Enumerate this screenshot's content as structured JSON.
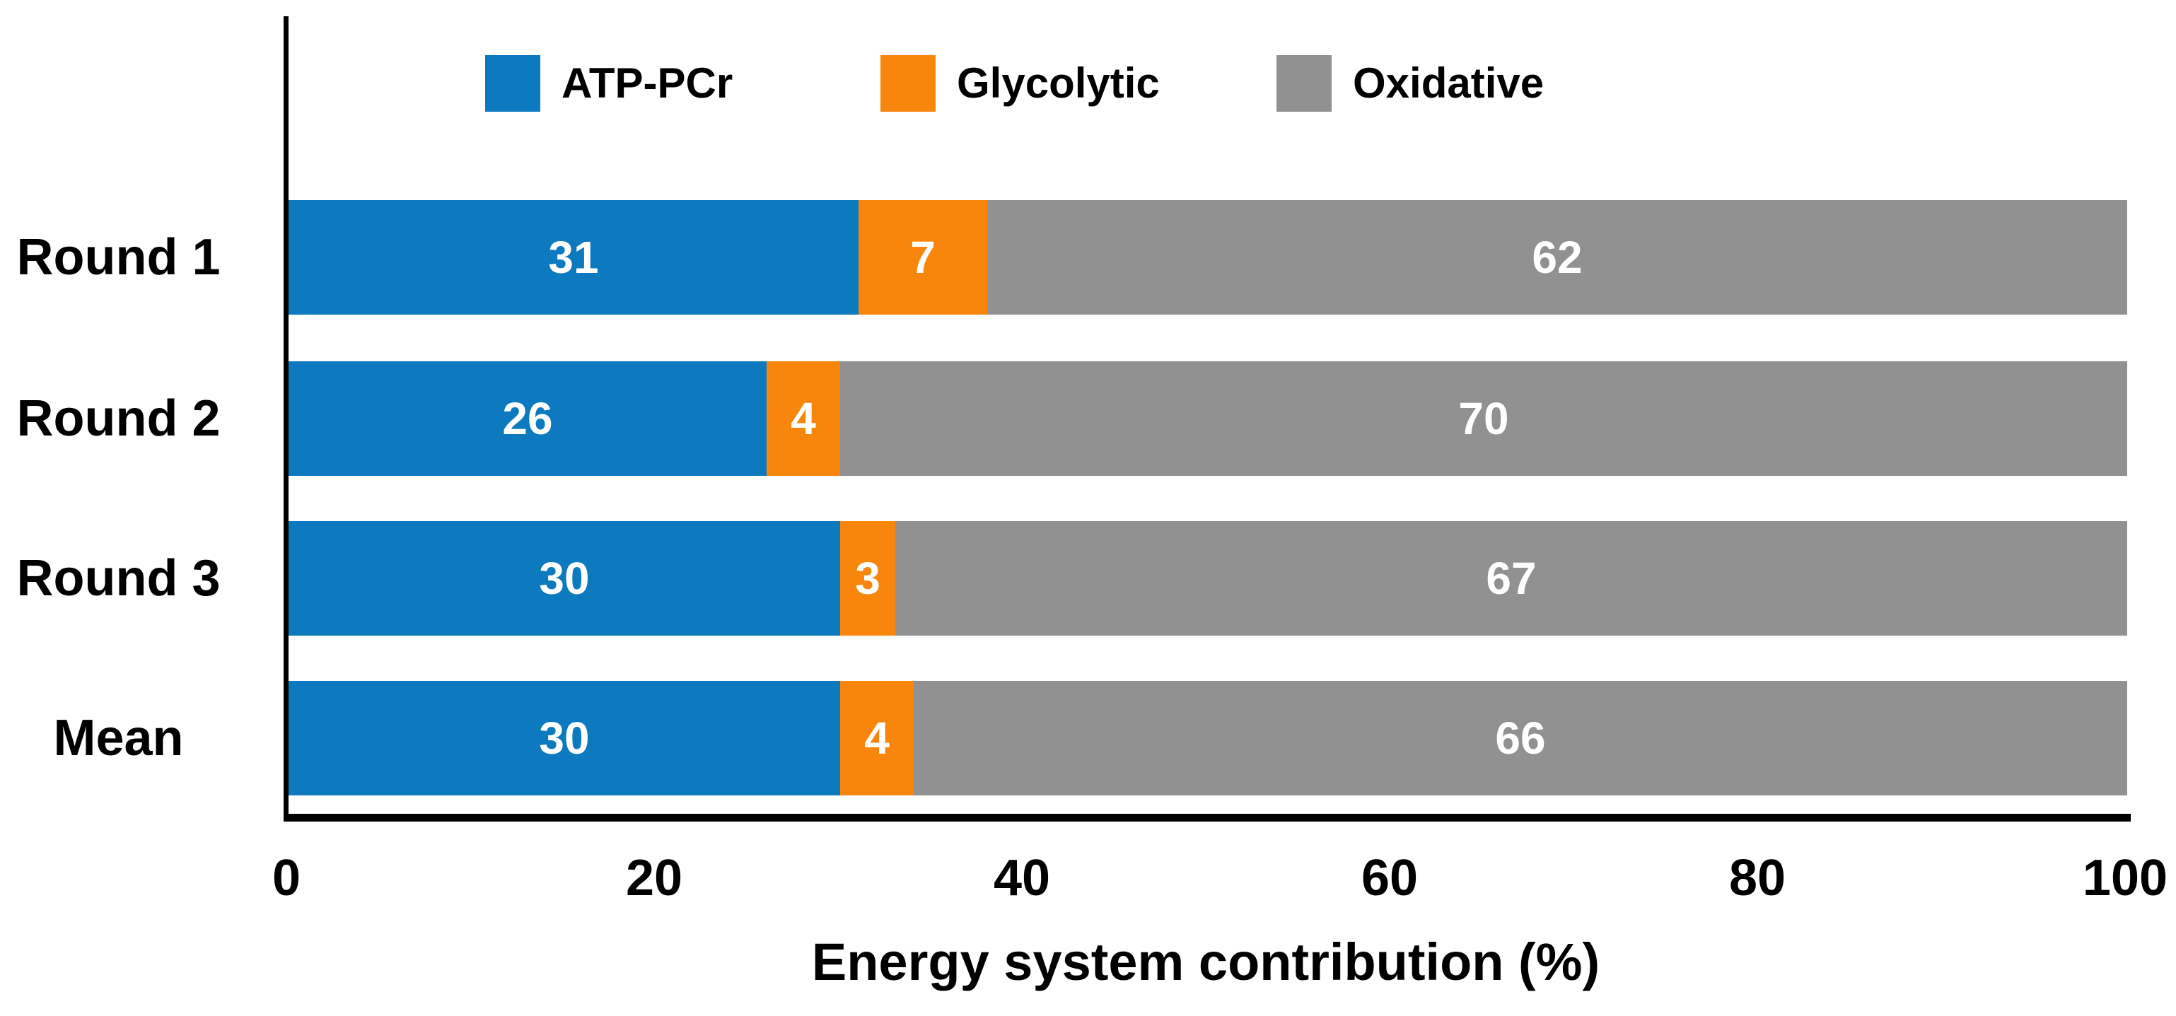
{
  "chart_data": {
    "type": "bar",
    "orientation": "horizontal",
    "stacked": true,
    "xlabel": "Energy system contribution (%)",
    "xlim": [
      0,
      100
    ],
    "xticks": [
      0,
      20,
      40,
      60,
      80,
      100
    ],
    "grid": false,
    "legend_position": "top",
    "categories": [
      "Round 1",
      "Round 2",
      "Round 3",
      "Mean"
    ],
    "series": [
      {
        "name": "ATP-PCr",
        "color": "#0d79be",
        "values": [
          31,
          26,
          30,
          30
        ]
      },
      {
        "name": "Glycolytic",
        "color": "#f8860d",
        "values": [
          7,
          4,
          3,
          4
        ]
      },
      {
        "name": "Oxidative",
        "color": "#919191",
        "values": [
          62,
          70,
          67,
          66
        ]
      }
    ],
    "value_labels": true,
    "value_label_color": "#ffffff",
    "axis_color": "#000000",
    "background_color": "#ffffff"
  }
}
